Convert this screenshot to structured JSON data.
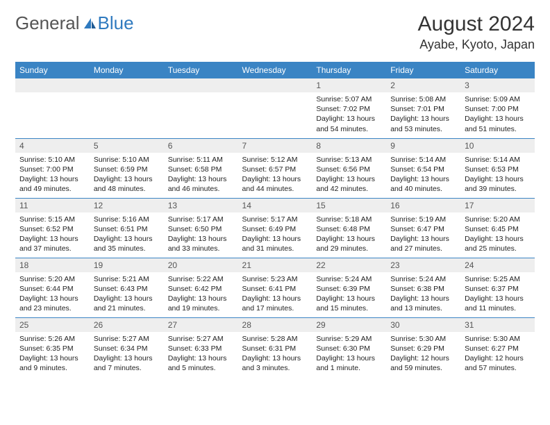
{
  "brand": {
    "part1": "General",
    "part2": "Blue"
  },
  "title": {
    "month": "August 2024",
    "location": "Ayabe, Kyoto, Japan"
  },
  "colors": {
    "header_bg": "#3a84c4",
    "header_text": "#ffffff",
    "daynum_bg": "#eeeeee",
    "row_border": "#3a84c4",
    "brand_blue": "#2f7abf"
  },
  "day_headers": [
    "Sunday",
    "Monday",
    "Tuesday",
    "Wednesday",
    "Thursday",
    "Friday",
    "Saturday"
  ],
  "weeks": [
    [
      {
        "day": "",
        "sunrise": "",
        "sunset": "",
        "daylight1": "",
        "daylight2": ""
      },
      {
        "day": "",
        "sunrise": "",
        "sunset": "",
        "daylight1": "",
        "daylight2": ""
      },
      {
        "day": "",
        "sunrise": "",
        "sunset": "",
        "daylight1": "",
        "daylight2": ""
      },
      {
        "day": "",
        "sunrise": "",
        "sunset": "",
        "daylight1": "",
        "daylight2": ""
      },
      {
        "day": "1",
        "sunrise": "Sunrise: 5:07 AM",
        "sunset": "Sunset: 7:02 PM",
        "daylight1": "Daylight: 13 hours",
        "daylight2": "and 54 minutes."
      },
      {
        "day": "2",
        "sunrise": "Sunrise: 5:08 AM",
        "sunset": "Sunset: 7:01 PM",
        "daylight1": "Daylight: 13 hours",
        "daylight2": "and 53 minutes."
      },
      {
        "day": "3",
        "sunrise": "Sunrise: 5:09 AM",
        "sunset": "Sunset: 7:00 PM",
        "daylight1": "Daylight: 13 hours",
        "daylight2": "and 51 minutes."
      }
    ],
    [
      {
        "day": "4",
        "sunrise": "Sunrise: 5:10 AM",
        "sunset": "Sunset: 7:00 PM",
        "daylight1": "Daylight: 13 hours",
        "daylight2": "and 49 minutes."
      },
      {
        "day": "5",
        "sunrise": "Sunrise: 5:10 AM",
        "sunset": "Sunset: 6:59 PM",
        "daylight1": "Daylight: 13 hours",
        "daylight2": "and 48 minutes."
      },
      {
        "day": "6",
        "sunrise": "Sunrise: 5:11 AM",
        "sunset": "Sunset: 6:58 PM",
        "daylight1": "Daylight: 13 hours",
        "daylight2": "and 46 minutes."
      },
      {
        "day": "7",
        "sunrise": "Sunrise: 5:12 AM",
        "sunset": "Sunset: 6:57 PM",
        "daylight1": "Daylight: 13 hours",
        "daylight2": "and 44 minutes."
      },
      {
        "day": "8",
        "sunrise": "Sunrise: 5:13 AM",
        "sunset": "Sunset: 6:56 PM",
        "daylight1": "Daylight: 13 hours",
        "daylight2": "and 42 minutes."
      },
      {
        "day": "9",
        "sunrise": "Sunrise: 5:14 AM",
        "sunset": "Sunset: 6:54 PM",
        "daylight1": "Daylight: 13 hours",
        "daylight2": "and 40 minutes."
      },
      {
        "day": "10",
        "sunrise": "Sunrise: 5:14 AM",
        "sunset": "Sunset: 6:53 PM",
        "daylight1": "Daylight: 13 hours",
        "daylight2": "and 39 minutes."
      }
    ],
    [
      {
        "day": "11",
        "sunrise": "Sunrise: 5:15 AM",
        "sunset": "Sunset: 6:52 PM",
        "daylight1": "Daylight: 13 hours",
        "daylight2": "and 37 minutes."
      },
      {
        "day": "12",
        "sunrise": "Sunrise: 5:16 AM",
        "sunset": "Sunset: 6:51 PM",
        "daylight1": "Daylight: 13 hours",
        "daylight2": "and 35 minutes."
      },
      {
        "day": "13",
        "sunrise": "Sunrise: 5:17 AM",
        "sunset": "Sunset: 6:50 PM",
        "daylight1": "Daylight: 13 hours",
        "daylight2": "and 33 minutes."
      },
      {
        "day": "14",
        "sunrise": "Sunrise: 5:17 AM",
        "sunset": "Sunset: 6:49 PM",
        "daylight1": "Daylight: 13 hours",
        "daylight2": "and 31 minutes."
      },
      {
        "day": "15",
        "sunrise": "Sunrise: 5:18 AM",
        "sunset": "Sunset: 6:48 PM",
        "daylight1": "Daylight: 13 hours",
        "daylight2": "and 29 minutes."
      },
      {
        "day": "16",
        "sunrise": "Sunrise: 5:19 AM",
        "sunset": "Sunset: 6:47 PM",
        "daylight1": "Daylight: 13 hours",
        "daylight2": "and 27 minutes."
      },
      {
        "day": "17",
        "sunrise": "Sunrise: 5:20 AM",
        "sunset": "Sunset: 6:45 PM",
        "daylight1": "Daylight: 13 hours",
        "daylight2": "and 25 minutes."
      }
    ],
    [
      {
        "day": "18",
        "sunrise": "Sunrise: 5:20 AM",
        "sunset": "Sunset: 6:44 PM",
        "daylight1": "Daylight: 13 hours",
        "daylight2": "and 23 minutes."
      },
      {
        "day": "19",
        "sunrise": "Sunrise: 5:21 AM",
        "sunset": "Sunset: 6:43 PM",
        "daylight1": "Daylight: 13 hours",
        "daylight2": "and 21 minutes."
      },
      {
        "day": "20",
        "sunrise": "Sunrise: 5:22 AM",
        "sunset": "Sunset: 6:42 PM",
        "daylight1": "Daylight: 13 hours",
        "daylight2": "and 19 minutes."
      },
      {
        "day": "21",
        "sunrise": "Sunrise: 5:23 AM",
        "sunset": "Sunset: 6:41 PM",
        "daylight1": "Daylight: 13 hours",
        "daylight2": "and 17 minutes."
      },
      {
        "day": "22",
        "sunrise": "Sunrise: 5:24 AM",
        "sunset": "Sunset: 6:39 PM",
        "daylight1": "Daylight: 13 hours",
        "daylight2": "and 15 minutes."
      },
      {
        "day": "23",
        "sunrise": "Sunrise: 5:24 AM",
        "sunset": "Sunset: 6:38 PM",
        "daylight1": "Daylight: 13 hours",
        "daylight2": "and 13 minutes."
      },
      {
        "day": "24",
        "sunrise": "Sunrise: 5:25 AM",
        "sunset": "Sunset: 6:37 PM",
        "daylight1": "Daylight: 13 hours",
        "daylight2": "and 11 minutes."
      }
    ],
    [
      {
        "day": "25",
        "sunrise": "Sunrise: 5:26 AM",
        "sunset": "Sunset: 6:35 PM",
        "daylight1": "Daylight: 13 hours",
        "daylight2": "and 9 minutes."
      },
      {
        "day": "26",
        "sunrise": "Sunrise: 5:27 AM",
        "sunset": "Sunset: 6:34 PM",
        "daylight1": "Daylight: 13 hours",
        "daylight2": "and 7 minutes."
      },
      {
        "day": "27",
        "sunrise": "Sunrise: 5:27 AM",
        "sunset": "Sunset: 6:33 PM",
        "daylight1": "Daylight: 13 hours",
        "daylight2": "and 5 minutes."
      },
      {
        "day": "28",
        "sunrise": "Sunrise: 5:28 AM",
        "sunset": "Sunset: 6:31 PM",
        "daylight1": "Daylight: 13 hours",
        "daylight2": "and 3 minutes."
      },
      {
        "day": "29",
        "sunrise": "Sunrise: 5:29 AM",
        "sunset": "Sunset: 6:30 PM",
        "daylight1": "Daylight: 13 hours",
        "daylight2": "and 1 minute."
      },
      {
        "day": "30",
        "sunrise": "Sunrise: 5:30 AM",
        "sunset": "Sunset: 6:29 PM",
        "daylight1": "Daylight: 12 hours",
        "daylight2": "and 59 minutes."
      },
      {
        "day": "31",
        "sunrise": "Sunrise: 5:30 AM",
        "sunset": "Sunset: 6:27 PM",
        "daylight1": "Daylight: 12 hours",
        "daylight2": "and 57 minutes."
      }
    ]
  ]
}
